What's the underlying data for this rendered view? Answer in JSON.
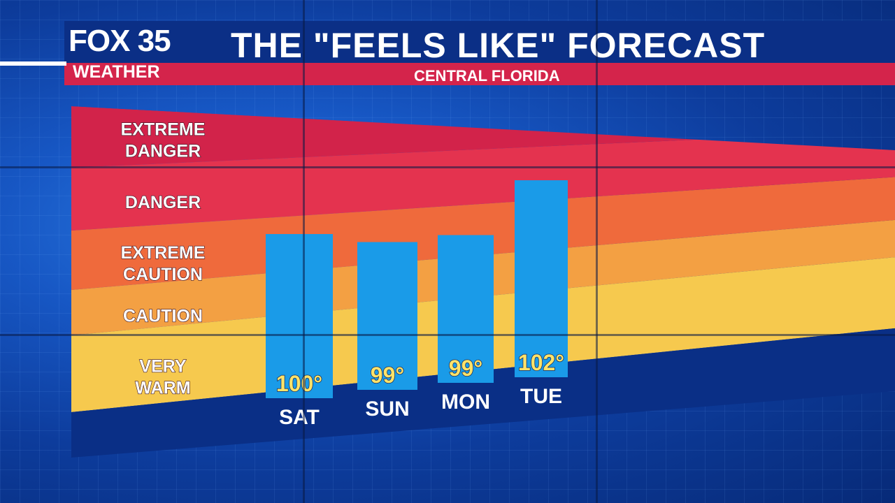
{
  "branding": {
    "station": "FOX 35",
    "section": "WEATHER"
  },
  "header": {
    "title": "THE \"FEELS LIKE\" FORECAST",
    "subtitle": "CENTRAL FLORIDA"
  },
  "chart_data": {
    "type": "bar",
    "title": "THE \"FEELS LIKE\" FORECAST",
    "subtitle": "CENTRAL FLORIDA",
    "xlabel": "",
    "ylabel": "",
    "categories": [
      "SAT",
      "SUN",
      "MON",
      "TUE"
    ],
    "values": [
      100,
      99,
      99,
      102
    ],
    "value_labels": [
      "100°",
      "99°",
      "99°",
      "102°"
    ],
    "unit": "°F",
    "bands": [
      {
        "label": [
          "VERY",
          "WARM"
        ],
        "color": "#f6c94e"
      },
      {
        "label": [
          "CAUTION"
        ],
        "color": "#f3a043"
      },
      {
        "label": [
          "EXTREME",
          "CAUTION"
        ],
        "color": "#ef6a3c"
      },
      {
        "label": [
          "DANGER"
        ],
        "color": "#e4334f"
      },
      {
        "label": [
          "EXTREME",
          "DANGER"
        ],
        "color": "#d2234a"
      }
    ],
    "bar_color": "#1a9be8",
    "grid": false,
    "legend": "left"
  }
}
